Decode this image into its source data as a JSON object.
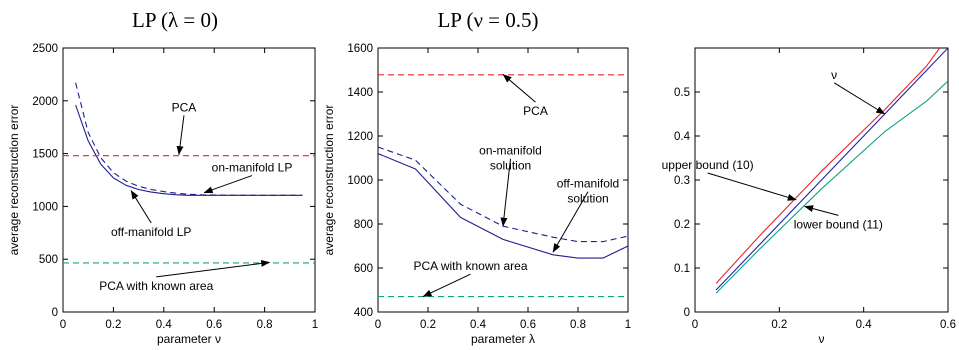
{
  "chart_data": [
    {
      "type": "line",
      "title": "LP (λ = 0)",
      "xlabel": "parameter ν",
      "ylabel": "average reconstruction error",
      "xlim": [
        0,
        1
      ],
      "ylim": [
        0,
        2500
      ],
      "xticks": [
        0,
        0.2,
        0.4,
        0.6,
        0.8,
        1
      ],
      "xtick_labels": [
        "0",
        "0.2",
        "0.4",
        "0.6",
        "0.8",
        "1"
      ],
      "yticks": [
        0,
        500,
        1000,
        1500,
        2000,
        2500
      ],
      "ytick_labels": [
        "0",
        "500",
        "1000",
        "1500",
        "2000",
        "2500"
      ],
      "grid": false,
      "series": [
        {
          "name": "on-manifold LP",
          "color": "#1f1f8f",
          "style": "dashed",
          "x": [
            0.05,
            0.1,
            0.15,
            0.2,
            0.25,
            0.3,
            0.35,
            0.4,
            0.45,
            0.5,
            0.55,
            0.6,
            0.7,
            0.8,
            0.95
          ],
          "y": [
            2170,
            1700,
            1460,
            1320,
            1240,
            1190,
            1160,
            1140,
            1125,
            1115,
            1110,
            1108,
            1105,
            1105,
            1105
          ]
        },
        {
          "name": "off-manifold LP",
          "color": "#1f1f8f",
          "style": "solid",
          "x": [
            0.05,
            0.1,
            0.15,
            0.2,
            0.25,
            0.3,
            0.35,
            0.4,
            0.45,
            0.5,
            0.55,
            0.6,
            0.7,
            0.8,
            0.95
          ],
          "y": [
            1960,
            1620,
            1400,
            1270,
            1200,
            1160,
            1135,
            1120,
            1110,
            1105,
            1105,
            1105,
            1105,
            1105,
            1105
          ]
        },
        {
          "name": "PCA",
          "color": "#e8262a",
          "style": "dashed",
          "x": [
            0,
            1
          ],
          "y": [
            1480,
            1480
          ]
        },
        {
          "name": "PCA with known area",
          "color": "#10a37f",
          "style": "dashed",
          "x": [
            0,
            1
          ],
          "y": [
            465,
            465
          ]
        }
      ],
      "annotations": [
        {
          "text": "PCA",
          "tx": 0.48,
          "ty": 1900,
          "ax": 0.46,
          "ay": 1490
        },
        {
          "text": "on-manifold LP",
          "tx": 0.75,
          "ty": 1330,
          "ax": 0.56,
          "ay": 1130
        },
        {
          "text": "off-manifold LP",
          "tx": 0.35,
          "ty": 720,
          "ax": 0.27,
          "ay": 1150
        },
        {
          "text": "PCA with known area",
          "tx": 0.37,
          "ty": 210,
          "ax": 0.82,
          "ay": 470
        }
      ]
    },
    {
      "type": "line",
      "title": "LP (ν = 0.5)",
      "xlabel": "parameter λ",
      "ylabel": "average reconstruction error",
      "xlim": [
        0,
        1
      ],
      "ylim": [
        400,
        1600
      ],
      "xticks": [
        0,
        0.2,
        0.4,
        0.6,
        0.8,
        1
      ],
      "xtick_labels": [
        "0",
        "0.2",
        "0.4",
        "0.6",
        "0.8",
        "1"
      ],
      "yticks": [
        400,
        600,
        800,
        1000,
        1200,
        1400,
        1600
      ],
      "ytick_labels": [
        "400",
        "600",
        "800",
        "1000",
        "1200",
        "1400",
        "1600"
      ],
      "grid": false,
      "series": [
        {
          "name": "on-manifold solution",
          "color": "#1f1f8f",
          "style": "dashed",
          "x": [
            0,
            0.15,
            0.33,
            0.5,
            0.7,
            0.8,
            0.9,
            1.0
          ],
          "y": [
            1150,
            1090,
            890,
            790,
            740,
            720,
            720,
            745
          ]
        },
        {
          "name": "off-manifold solution",
          "color": "#1f1f8f",
          "style": "solid",
          "x": [
            0,
            0.15,
            0.33,
            0.5,
            0.7,
            0.8,
            0.9,
            1.0
          ],
          "y": [
            1120,
            1050,
            830,
            730,
            660,
            645,
            645,
            700
          ]
        },
        {
          "name": "PCA",
          "color": "#e8262a",
          "style": "dashed",
          "x": [
            0,
            1
          ],
          "y": [
            1478,
            1478
          ]
        },
        {
          "name": "PCA with known area",
          "color": "#10a37f",
          "style": "dashed",
          "x": [
            0,
            1
          ],
          "y": [
            470,
            470
          ]
        }
      ],
      "annotations": [
        {
          "text": "PCA",
          "tx": 0.63,
          "ty": 1295,
          "ax": 0.5,
          "ay": 1480
        },
        {
          "text": "on-manifold",
          "tx": 0.53,
          "ty": 1115,
          "ax": 0.5,
          "ay": 790
        },
        {
          "text": "solution",
          "tx": 0.53,
          "ty": 1048,
          "ax": null,
          "ay": null
        },
        {
          "text": "off-manifold",
          "tx": 0.84,
          "ty": 965,
          "ax": 0.7,
          "ay": 672
        },
        {
          "text": "solution",
          "tx": 0.84,
          "ty": 898,
          "ax": null,
          "ay": null
        },
        {
          "text": "PCA with known area",
          "tx": 0.37,
          "ty": 590,
          "ax": 0.18,
          "ay": 470
        }
      ]
    },
    {
      "type": "line",
      "title": "",
      "xlabel": "ν",
      "ylabel": "",
      "xlim": [
        0,
        0.6
      ],
      "ylim": [
        0,
        0.6
      ],
      "xticks": [
        0,
        0.2,
        0.4,
        0.6
      ],
      "xtick_labels": [
        "0",
        "0.2",
        "0.4",
        "0.6"
      ],
      "yticks": [
        0,
        0.1,
        0.2,
        0.3,
        0.4,
        0.5
      ],
      "ytick_labels": [
        "0",
        "0.1",
        "0.2",
        "0.3",
        "0.4",
        "0.5"
      ],
      "grid": false,
      "series": [
        {
          "name": "upper bound (10)",
          "color": "#e8262a",
          "style": "solid",
          "x": [
            0.05,
            0.15,
            0.3,
            0.45,
            0.55,
            0.58
          ],
          "y": [
            0.065,
            0.17,
            0.32,
            0.46,
            0.56,
            0.6
          ]
        },
        {
          "name": "ν",
          "color": "#2222aa",
          "style": "solid",
          "x": [
            0.05,
            0.6
          ],
          "y": [
            0.05,
            0.6
          ]
        },
        {
          "name": "lower bound (11)",
          "color": "#10a37f",
          "style": "solid",
          "x": [
            0.05,
            0.15,
            0.3,
            0.45,
            0.55,
            0.6
          ],
          "y": [
            0.043,
            0.14,
            0.28,
            0.41,
            0.48,
            0.525
          ]
        }
      ],
      "annotations": [
        {
          "text": "ν",
          "tx": 0.33,
          "ty": 0.53,
          "ax": 0.45,
          "ay": 0.45
        },
        {
          "text": "upper bound (10)",
          "tx": 0.03,
          "ty": 0.325,
          "ax": 0.24,
          "ay": 0.255
        },
        {
          "text": "lower bound (11)",
          "tx": 0.34,
          "ty": 0.19,
          "ax": 0.26,
          "ay": 0.24
        }
      ]
    }
  ]
}
